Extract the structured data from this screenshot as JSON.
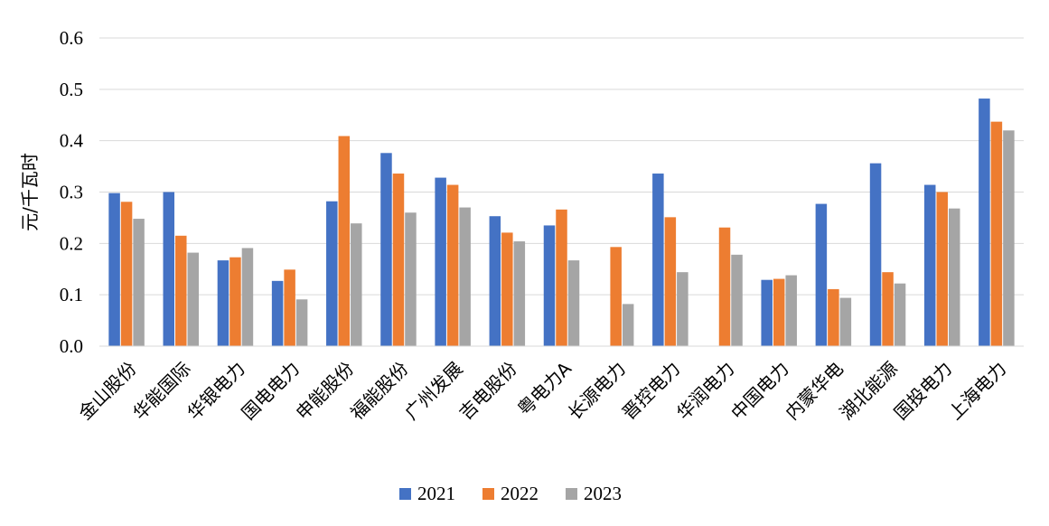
{
  "chart_data": {
    "type": "bar",
    "ylabel": "元/千瓦时",
    "ylim": [
      0,
      0.6
    ],
    "yticks": [
      "0.0",
      "0.1",
      "0.2",
      "0.3",
      "0.4",
      "0.5",
      "0.6"
    ],
    "grid": true,
    "legend_position": "bottom",
    "categories": [
      "金山股份",
      "华能国际",
      "华银电力",
      "国电电力",
      "申能股份",
      "福能股份",
      "广州发展",
      "吉电股份",
      "粤电力A",
      "长源电力",
      "晋控电力",
      "华润电力",
      "中国电力",
      "内蒙华电",
      "湖北能源",
      "国投电力",
      "上海电力"
    ],
    "series": [
      {
        "name": "2021",
        "color": "#4472C4",
        "values": [
          0.298,
          0.3,
          0.167,
          0.127,
          0.282,
          0.376,
          0.328,
          0.253,
          0.235,
          null,
          0.336,
          null,
          0.129,
          0.277,
          0.356,
          0.314,
          0.482
        ]
      },
      {
        "name": "2022",
        "color": "#ED7D31",
        "values": [
          0.281,
          0.215,
          0.173,
          0.149,
          0.409,
          0.336,
          0.314,
          0.221,
          0.266,
          0.193,
          0.251,
          0.231,
          0.131,
          0.111,
          0.144,
          0.3,
          0.437
        ]
      },
      {
        "name": "2023",
        "color": "#A5A5A5",
        "values": [
          0.248,
          0.182,
          0.191,
          0.091,
          0.239,
          0.26,
          0.27,
          0.204,
          0.167,
          0.082,
          0.144,
          0.178,
          0.138,
          0.094,
          0.122,
          0.268,
          0.42
        ]
      }
    ]
  }
}
